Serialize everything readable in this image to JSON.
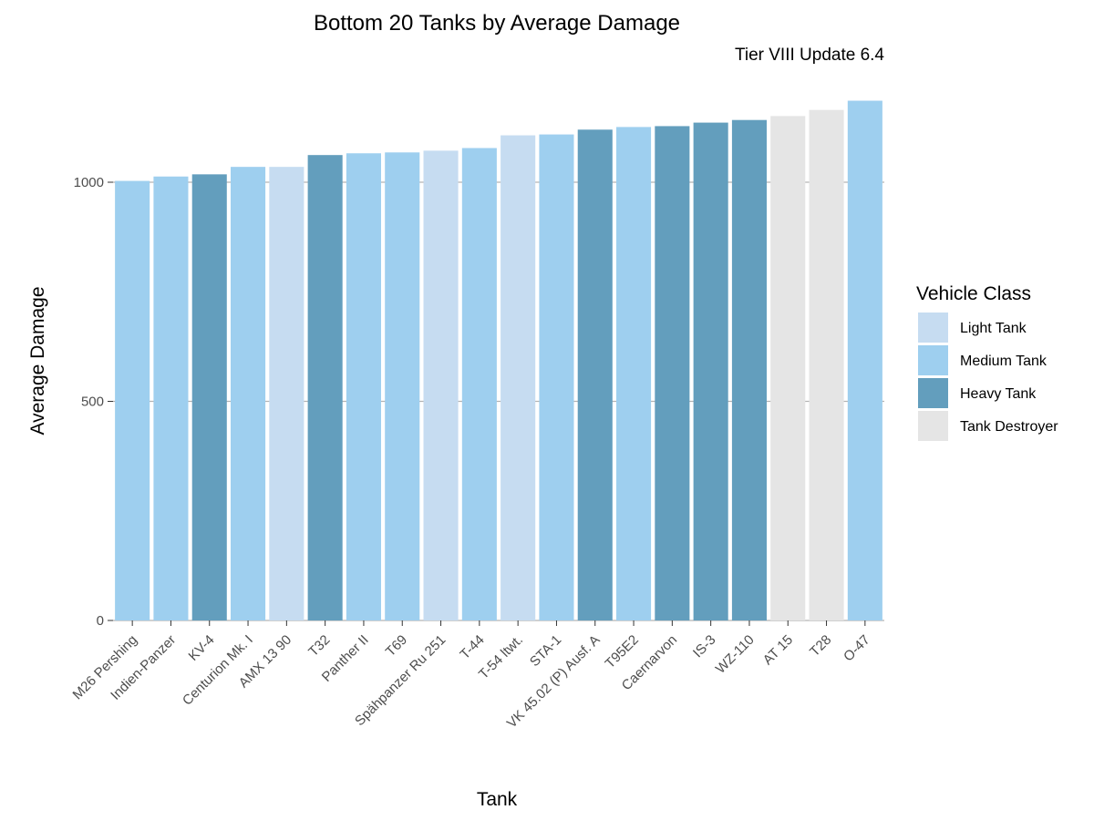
{
  "chart_data": {
    "type": "bar",
    "title": "Bottom 20 Tanks by Average Damage",
    "subtitle": "Tier VIII Update 6.4",
    "xlabel": "Tank",
    "ylabel": "Average Damage",
    "ylim": [
      0,
      1200
    ],
    "yticks": [
      0,
      500,
      1000
    ],
    "grid": "horizontal major",
    "legend": {
      "title": "Vehicle Class",
      "position": "right",
      "entries": [
        {
          "label": "Light Tank",
          "color": "#c6dcf1"
        },
        {
          "label": "Medium Tank",
          "color": "#9ecfef"
        },
        {
          "label": "Heavy Tank",
          "color": "#639ebd"
        },
        {
          "label": "Tank Destroyer",
          "color": "#e5e5e5"
        }
      ]
    },
    "categories": [
      "M26 Pershing",
      "Indien-Panzer",
      "KV-4",
      "Centurion Mk. I",
      "AMX 13 90",
      "T32",
      "Panther II",
      "T69",
      "Spähpanzer Ru 251",
      "T-44",
      "T-54 ltwt.",
      "STA-1",
      "VK 45.02 (P) Ausf. A",
      "T95E2",
      "Caernarvon",
      "IS-3",
      "WZ-110",
      "AT 15",
      "T28",
      "O-47"
    ],
    "values": [
      1003,
      1013,
      1018,
      1035,
      1035,
      1062,
      1066,
      1068,
      1072,
      1078,
      1107,
      1109,
      1120,
      1126,
      1128,
      1136,
      1142,
      1151,
      1165,
      1186
    ],
    "classes": [
      "Medium Tank",
      "Medium Tank",
      "Heavy Tank",
      "Medium Tank",
      "Light Tank",
      "Heavy Tank",
      "Medium Tank",
      "Medium Tank",
      "Light Tank",
      "Medium Tank",
      "Light Tank",
      "Medium Tank",
      "Heavy Tank",
      "Medium Tank",
      "Heavy Tank",
      "Heavy Tank",
      "Heavy Tank",
      "Tank Destroyer",
      "Tank Destroyer",
      "Medium Tank"
    ]
  }
}
